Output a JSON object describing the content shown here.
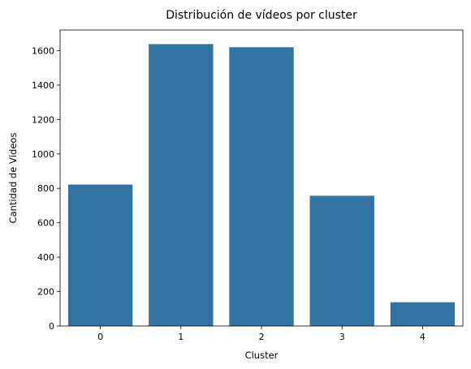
{
  "chart_data": {
    "type": "bar",
    "title": "Distribución de vídeos por cluster",
    "xlabel": "Cluster",
    "ylabel": "Cantidad de Vídeos",
    "categories": [
      "0",
      "1",
      "2",
      "3",
      "4"
    ],
    "values": [
      822,
      1638,
      1620,
      757,
      138
    ],
    "yticks": [
      0,
      200,
      400,
      600,
      800,
      1000,
      1200,
      1400,
      1600
    ],
    "ytick_labels": [
      "0",
      "200",
      "400",
      "600",
      "800",
      "1000",
      "1200",
      "1400",
      "1600"
    ],
    "ylim": [
      0,
      1720
    ],
    "grid": false,
    "bar_color": "#3274a1"
  }
}
